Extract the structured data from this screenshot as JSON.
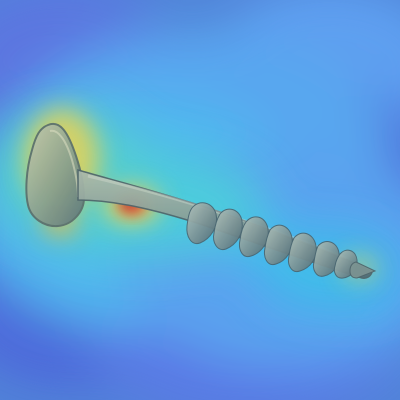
{
  "image": {
    "subject": "screw",
    "overlay": "heatmap",
    "colors": {
      "cold": "#4b62d9",
      "cool": "#5f9ff2",
      "mid": "#39c6ea",
      "warm": "#f2d34a",
      "hot": "#e04a2a",
      "metal_light": "#b8c0b0",
      "metal_dark": "#4f646b"
    }
  }
}
